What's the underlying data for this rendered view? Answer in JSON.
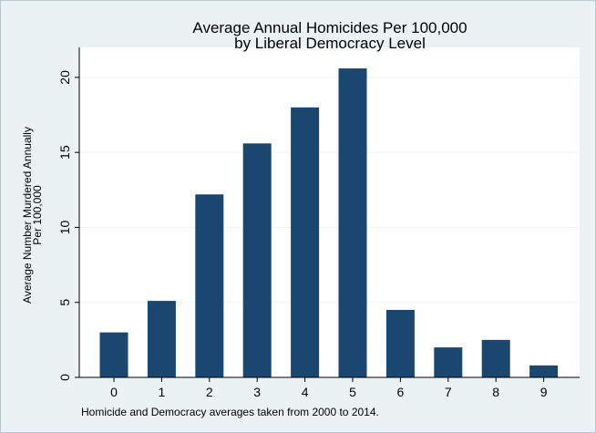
{
  "colors": {
    "background": "#eaf2f3",
    "plot_area": "#ffffff",
    "bar": "#1a476f",
    "gridline": "#eaf2f3"
  },
  "chart_data": {
    "type": "bar",
    "title_lines": [
      "Average Annual Homicides Per 100,000",
      "by Liberal Democracy Level"
    ],
    "ylabel_lines": [
      "Average Number Murdered Annually",
      "Per 100,000"
    ],
    "xlabel": "",
    "note": "Homicide and Democracy averages taken from 2000 to 2014.",
    "categories": [
      "0",
      "1",
      "2",
      "3",
      "4",
      "5",
      "6",
      "7",
      "8",
      "9"
    ],
    "values": [
      3.0,
      5.1,
      12.2,
      15.6,
      18.0,
      20.6,
      4.5,
      2.0,
      2.5,
      0.8
    ],
    "ylim": [
      0,
      22
    ],
    "yticks": [
      0,
      5,
      10,
      15,
      20
    ],
    "grid": true,
    "legend": "none"
  }
}
